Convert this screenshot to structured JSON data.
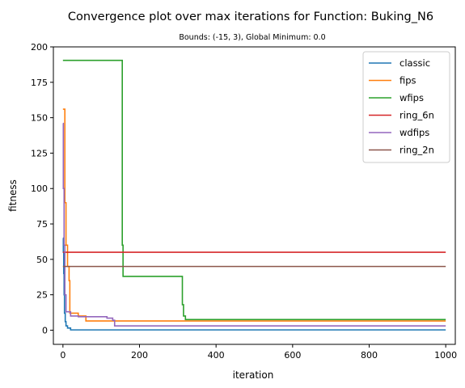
{
  "chart_data": {
    "type": "line",
    "title": "Convergence plot over max iterations for Function: Buking_N6",
    "subtitle": "Bounds: (-15, 3), Global Minimum: 0.0",
    "xlabel": "iteration",
    "ylabel": "fitness",
    "xlim": [
      -25,
      1025
    ],
    "ylim": [
      -10,
      200
    ],
    "xticks": [
      0,
      200,
      400,
      600,
      800,
      1000
    ],
    "yticks": [
      0,
      25,
      50,
      75,
      100,
      125,
      150,
      175,
      200
    ],
    "grid": false,
    "legend_position": "top-right",
    "series": [
      {
        "name": "classic",
        "color": "#1f77b4",
        "x": [
          0,
          1,
          1,
          2,
          2,
          3,
          3,
          4,
          4,
          6,
          6,
          8,
          8,
          12,
          12,
          20,
          20,
          1000
        ],
        "y": [
          65,
          65,
          55,
          55,
          40,
          40,
          25,
          25,
          12,
          12,
          6,
          6,
          3,
          3,
          1.5,
          1.5,
          0.2,
          0.2
        ]
      },
      {
        "name": "fips",
        "color": "#ff7f0e",
        "x": [
          0,
          5,
          5,
          8,
          8,
          12,
          12,
          16,
          16,
          18,
          18,
          40,
          40,
          60,
          60,
          1000
        ],
        "y": [
          156,
          156,
          90,
          90,
          60,
          60,
          45,
          45,
          35,
          35,
          12,
          12,
          10,
          10,
          6.5,
          6.5
        ]
      },
      {
        "name": "wfips",
        "color": "#2ca02c",
        "x": [
          0,
          155,
          155,
          157,
          157,
          312,
          312,
          315,
          315,
          320,
          320,
          1000
        ],
        "y": [
          190.5,
          190.5,
          60,
          60,
          38,
          38,
          18,
          18,
          10,
          10,
          7.5,
          7.5
        ]
      },
      {
        "name": "ring_6n",
        "color": "#d62728",
        "x": [
          0,
          1000
        ],
        "y": [
          55,
          55
        ]
      },
      {
        "name": "wdfips",
        "color": "#9467bd",
        "x": [
          0,
          1,
          1,
          3,
          3,
          5,
          5,
          8,
          8,
          20,
          20,
          40,
          40,
          115,
          115,
          130,
          130,
          135,
          135,
          1000
        ],
        "y": [
          146,
          146,
          100,
          100,
          60,
          60,
          25,
          25,
          13,
          13,
          10,
          10,
          9.5,
          9.5,
          8.5,
          8.5,
          7,
          7,
          3,
          3
        ]
      },
      {
        "name": "ring_2n",
        "color": "#8c564b",
        "x": [
          0,
          1000
        ],
        "y": [
          45,
          45
        ]
      }
    ]
  }
}
